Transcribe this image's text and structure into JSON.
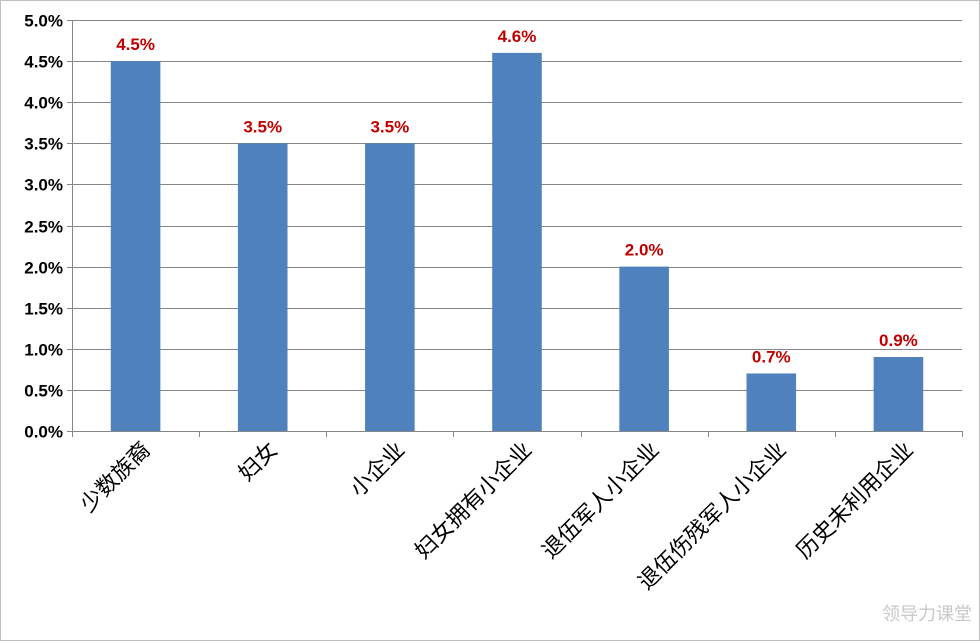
{
  "chart_data": {
    "type": "bar",
    "title": "",
    "xlabel": "",
    "ylabel": "",
    "categories": [
      "少数族裔",
      "妇女",
      "小企业",
      "妇女拥有小企业",
      "退伍军人小企业",
      "退伍伤残军人小企业",
      "历史未利用企业"
    ],
    "values": [
      4.5,
      3.5,
      3.5,
      4.6,
      2.0,
      0.7,
      0.9
    ],
    "data_labels": [
      "4.5%",
      "3.5%",
      "3.5%",
      "4.6%",
      "2.0%",
      "0.7%",
      "0.9%"
    ],
    "ylim": [
      0,
      5.0
    ],
    "yticks": [
      0,
      0.5,
      1.0,
      1.5,
      2.0,
      2.5,
      3.0,
      3.5,
      4.0,
      4.5,
      5.0
    ],
    "ytick_labels": [
      "0.0%",
      "0.5%",
      "1.0%",
      "1.5%",
      "2.0%",
      "2.5%",
      "3.0%",
      "3.5%",
      "4.0%",
      "4.5%",
      "5.0%"
    ],
    "grid": true,
    "legend": "none",
    "bar_color": "#4f81bd",
    "label_color": "#c00000"
  },
  "watermark": "领导力课堂"
}
